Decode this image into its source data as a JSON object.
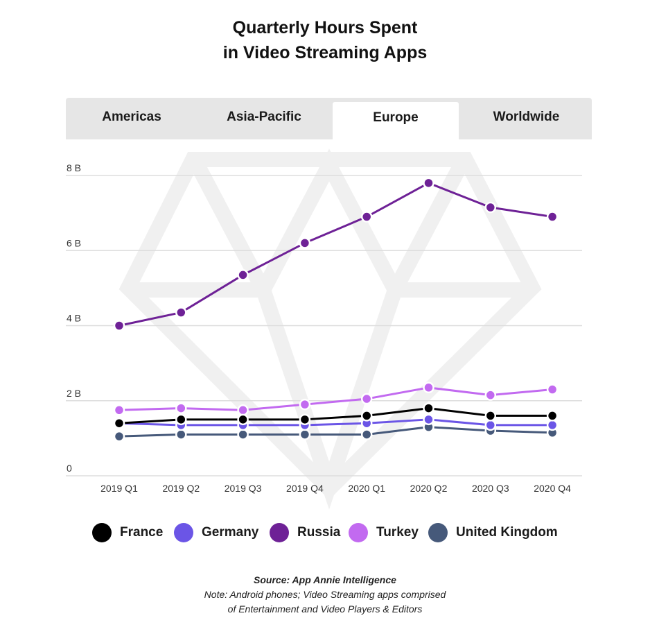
{
  "title_line1": "Quarterly Hours Spent",
  "title_line2": "in Video Streaming Apps",
  "tabs": [
    {
      "label": "Americas",
      "active": false
    },
    {
      "label": "Asia-Pacific",
      "active": false
    },
    {
      "label": "Europe",
      "active": true
    },
    {
      "label": "Worldwide",
      "active": false
    }
  ],
  "colors": {
    "France": "#000000",
    "Germany": "#6b55e6",
    "Russia": "#6e2196",
    "Turkey": "#c26af0",
    "United Kingdom": "#46597a",
    "grid": "#dddddd",
    "tab_bg": "#e6e6e6",
    "watermark": "#f0f0f0"
  },
  "legend": [
    {
      "label": "France",
      "color": "#000000"
    },
    {
      "label": "Germany",
      "color": "#6b55e6"
    },
    {
      "label": "Russia",
      "color": "#6e2196"
    },
    {
      "label": "Turkey",
      "color": "#c26af0"
    },
    {
      "label": "United Kingdom",
      "color": "#46597a"
    }
  ],
  "chart_data": {
    "type": "line",
    "title": "Quarterly Hours Spent in Video Streaming Apps",
    "categories": [
      "2019 Q1",
      "2019 Q2",
      "2019 Q3",
      "2019 Q4",
      "2020 Q1",
      "2020 Q2",
      "2020 Q3",
      "2020 Q4"
    ],
    "y_ticks": [
      "0",
      "2 B",
      "4 B",
      "6 B",
      "8 B"
    ],
    "ylim": [
      0,
      8
    ],
    "y_unit": "B",
    "grid": true,
    "legend_position": "bottom",
    "series": [
      {
        "name": "France",
        "values": [
          1.4,
          1.5,
          1.5,
          1.5,
          1.6,
          1.8,
          1.6,
          1.6
        ]
      },
      {
        "name": "Germany",
        "values": [
          1.4,
          1.35,
          1.35,
          1.35,
          1.4,
          1.5,
          1.35,
          1.35
        ]
      },
      {
        "name": "Russia",
        "values": [
          4.0,
          4.35,
          5.35,
          6.2,
          6.9,
          7.8,
          7.15,
          6.9
        ]
      },
      {
        "name": "Turkey",
        "values": [
          1.75,
          1.8,
          1.75,
          1.9,
          2.05,
          2.35,
          2.15,
          2.3
        ]
      },
      {
        "name": "United Kingdom",
        "values": [
          1.05,
          1.1,
          1.1,
          1.1,
          1.1,
          1.3,
          1.2,
          1.15
        ]
      }
    ]
  },
  "footer": {
    "source": "Source: App Annie Intelligence",
    "note1": "Note: Android phones; Video Streaming apps comprised",
    "note2": "of Entertainment and Video Players & Editors"
  }
}
